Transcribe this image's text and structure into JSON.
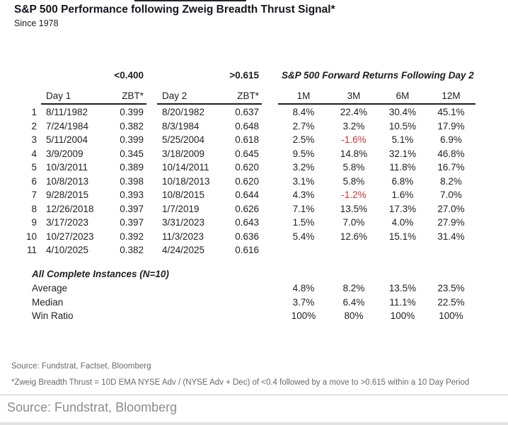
{
  "title": "S&P 500 Performance following Zweig Breadth Thrust Signal*",
  "subtitle": "Since 1978",
  "thresholds": {
    "day1": "<0.400",
    "day2": ">0.615"
  },
  "returns_title": "S&P 500 Forward Returns Following Day 2",
  "table": {
    "columns": {
      "day1": "Day 1",
      "zbt1": "ZBT*",
      "day2": "Day 2",
      "zbt2": "ZBT*",
      "m1": "1M",
      "m3": "3M",
      "m6": "6M",
      "m12": "12M"
    },
    "rows": [
      {
        "num": "1",
        "day1": "8/11/1982",
        "zbt1": "0.399",
        "day2": "8/20/1982",
        "zbt2": "0.637",
        "m1": "8.4%",
        "m3": "22.4%",
        "m6": "30.4%",
        "m12": "45.1%"
      },
      {
        "num": "2",
        "day1": "7/24/1984",
        "zbt1": "0.382",
        "day2": "8/3/1984",
        "zbt2": "0.648",
        "m1": "2.7%",
        "m3": "3.2%",
        "m6": "10.5%",
        "m12": "17.9%"
      },
      {
        "num": "3",
        "day1": "5/11/2004",
        "zbt1": "0.399",
        "day2": "5/25/2004",
        "zbt2": "0.618",
        "m1": "2.5%",
        "m3": "-1.6%",
        "m6": "5.1%",
        "m12": "6.9%"
      },
      {
        "num": "4",
        "day1": "3/9/2009",
        "zbt1": "0.345",
        "day2": "3/18/2009",
        "zbt2": "0.645",
        "m1": "9.5%",
        "m3": "14.8%",
        "m6": "32.1%",
        "m12": "46.8%"
      },
      {
        "num": "5",
        "day1": "10/3/2011",
        "zbt1": "0.389",
        "day2": "10/14/2011",
        "zbt2": "0.620",
        "m1": "3.2%",
        "m3": "5.8%",
        "m6": "11.8%",
        "m12": "16.7%"
      },
      {
        "num": "6",
        "day1": "10/8/2013",
        "zbt1": "0.398",
        "day2": "10/18/2013",
        "zbt2": "0.620",
        "m1": "3.1%",
        "m3": "5.8%",
        "m6": "6.8%",
        "m12": "8.2%"
      },
      {
        "num": "7",
        "day1": "9/28/2015",
        "zbt1": "0.393",
        "day2": "10/8/2015",
        "zbt2": "0.644",
        "m1": "4.3%",
        "m3": "-1.2%",
        "m6": "1.6%",
        "m12": "7.0%"
      },
      {
        "num": "8",
        "day1": "12/26/2018",
        "zbt1": "0.397",
        "day2": "1/7/2019",
        "zbt2": "0.626",
        "m1": "7.1%",
        "m3": "13.5%",
        "m6": "17.3%",
        "m12": "27.0%"
      },
      {
        "num": "9",
        "day1": "3/17/2023",
        "zbt1": "0.397",
        "day2": "3/31/2023",
        "zbt2": "0.643",
        "m1": "1.5%",
        "m3": "7.0%",
        "m6": "4.0%",
        "m12": "27.9%"
      },
      {
        "num": "10",
        "day1": "10/27/2023",
        "zbt1": "0.392",
        "day2": "11/3/2023",
        "zbt2": "0.636",
        "m1": "5.4%",
        "m3": "12.6%",
        "m6": "15.1%",
        "m12": "31.4%"
      },
      {
        "num": "11",
        "day1": "4/10/2025",
        "zbt1": "0.382",
        "day2": "4/24/2025",
        "zbt2": "0.616",
        "m1": "",
        "m3": "",
        "m6": "",
        "m12": ""
      }
    ]
  },
  "summary": {
    "heading": "All Complete Instances (N=10)",
    "rows": [
      {
        "label": "Average",
        "m1": "4.8%",
        "m3": "8.2%",
        "m6": "13.5%",
        "m12": "23.5%"
      },
      {
        "label": "Median",
        "m1": "3.7%",
        "m3": "6.4%",
        "m6": "11.1%",
        "m12": "22.5%"
      },
      {
        "label": "Win Ratio",
        "m1": "100%",
        "m3": "80%",
        "m6": "100%",
        "m12": "100%"
      }
    ]
  },
  "footnotes": {
    "source": "Source: Fundstrat, Factset, Bloomberg",
    "definition": "*Zweig Breadth Thrust = 10D EMA NYSE Adv / (NYSE Adv + Dec) of <0.4 followed by a move to >0.615 within a 10 Day Period"
  },
  "caption": "Source: Fundstrat, Bloomberg",
  "colors": {
    "negative": "#cf3430",
    "text": "#1f1f1f",
    "muted": "#696969",
    "caption_gray": "#8c8c8c"
  },
  "chart_data": {
    "type": "table",
    "title": "S&P 500 Performance following Zweig Breadth Thrust Signal* (Since 1978)",
    "column_headers": [
      "#",
      "Day 1",
      "ZBT*",
      "Day 2",
      "ZBT*",
      "1M",
      "3M",
      "6M",
      "12M"
    ],
    "threshold_labels": {
      "day1_zbt": "<0.400",
      "day2_zbt": ">0.615"
    },
    "section_header": "S&P 500 Forward Returns Following Day 2",
    "rows": [
      [
        "1",
        "8/11/1982",
        0.399,
        "8/20/1982",
        0.637,
        8.4,
        22.4,
        30.4,
        45.1
      ],
      [
        "2",
        "7/24/1984",
        0.382,
        "8/3/1984",
        0.648,
        2.7,
        3.2,
        10.5,
        17.9
      ],
      [
        "3",
        "5/11/2004",
        0.399,
        "5/25/2004",
        0.618,
        2.5,
        -1.6,
        5.1,
        6.9
      ],
      [
        "4",
        "3/9/2009",
        0.345,
        "3/18/2009",
        0.645,
        9.5,
        14.8,
        32.1,
        46.8
      ],
      [
        "5",
        "10/3/2011",
        0.389,
        "10/14/2011",
        0.62,
        3.2,
        5.8,
        11.8,
        16.7
      ],
      [
        "6",
        "10/8/2013",
        0.398,
        "10/18/2013",
        0.62,
        3.1,
        5.8,
        6.8,
        8.2
      ],
      [
        "7",
        "9/28/2015",
        0.393,
        "10/8/2015",
        0.644,
        4.3,
        -1.2,
        1.6,
        7.0
      ],
      [
        "8",
        "12/26/2018",
        0.397,
        "1/7/2019",
        0.626,
        7.1,
        13.5,
        17.3,
        27.0
      ],
      [
        "9",
        "3/17/2023",
        0.397,
        "3/31/2023",
        0.643,
        1.5,
        7.0,
        4.0,
        27.9
      ],
      [
        "10",
        "10/27/2023",
        0.392,
        "11/3/2023",
        0.636,
        5.4,
        12.6,
        15.1,
        31.4
      ],
      [
        "11",
        "4/10/2025",
        0.382,
        "4/24/2025",
        0.616,
        null,
        null,
        null,
        null
      ]
    ],
    "summary": {
      "heading": "All Complete Instances (N=10)",
      "Average": {
        "1M": 4.8,
        "3M": 8.2,
        "6M": 13.5,
        "12M": 23.5
      },
      "Median": {
        "1M": 3.7,
        "3M": 6.4,
        "6M": 11.1,
        "12M": 22.5
      },
      "Win Ratio": {
        "1M": "100%",
        "3M": "80%",
        "6M": "100%",
        "12M": "100%"
      }
    },
    "units": "percent return"
  }
}
